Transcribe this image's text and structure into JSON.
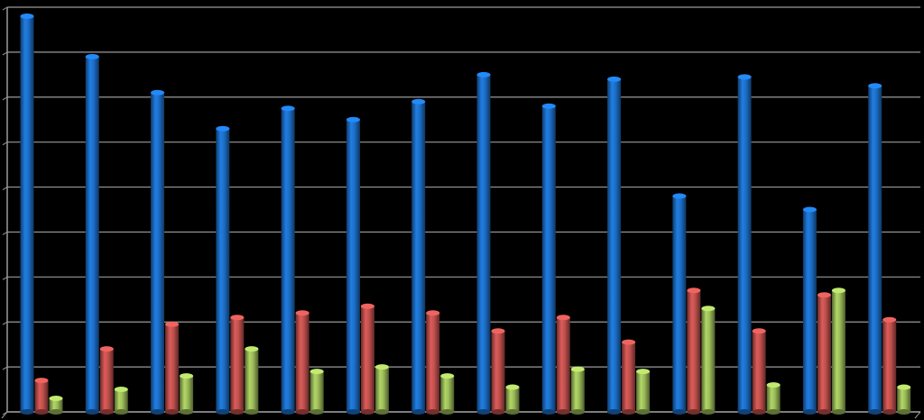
{
  "chart_data": {
    "type": "bar",
    "categories": [
      null,
      null,
      null,
      null,
      null,
      null,
      null,
      null,
      null,
      null,
      null,
      null,
      null,
      null
    ],
    "series": [
      {
        "color": "#1c6ec6",
        "values": [
          8.8,
          7.9,
          7.1,
          6.3,
          6.75,
          6.5,
          6.9,
          7.5,
          6.8,
          7.4,
          4.8,
          7.45,
          4.5,
          7.25
        ]
      },
      {
        "color": "#c0504d",
        "values": [
          0.7,
          1.4,
          1.95,
          2.1,
          2.2,
          2.35,
          2.2,
          1.8,
          2.1,
          1.55,
          2.7,
          1.8,
          2.6,
          2.05
        ]
      },
      {
        "color": "#9bbb59",
        "values": [
          0.3,
          0.5,
          0.8,
          1.4,
          0.9,
          1.0,
          0.8,
          0.55,
          0.95,
          0.9,
          2.3,
          0.6,
          2.7,
          0.55
        ]
      }
    ],
    "ylim": [
      0,
      9
    ],
    "yticks": [
      0,
      1,
      2,
      3,
      4,
      5,
      6,
      7,
      8,
      9
    ],
    "grid": true
  }
}
